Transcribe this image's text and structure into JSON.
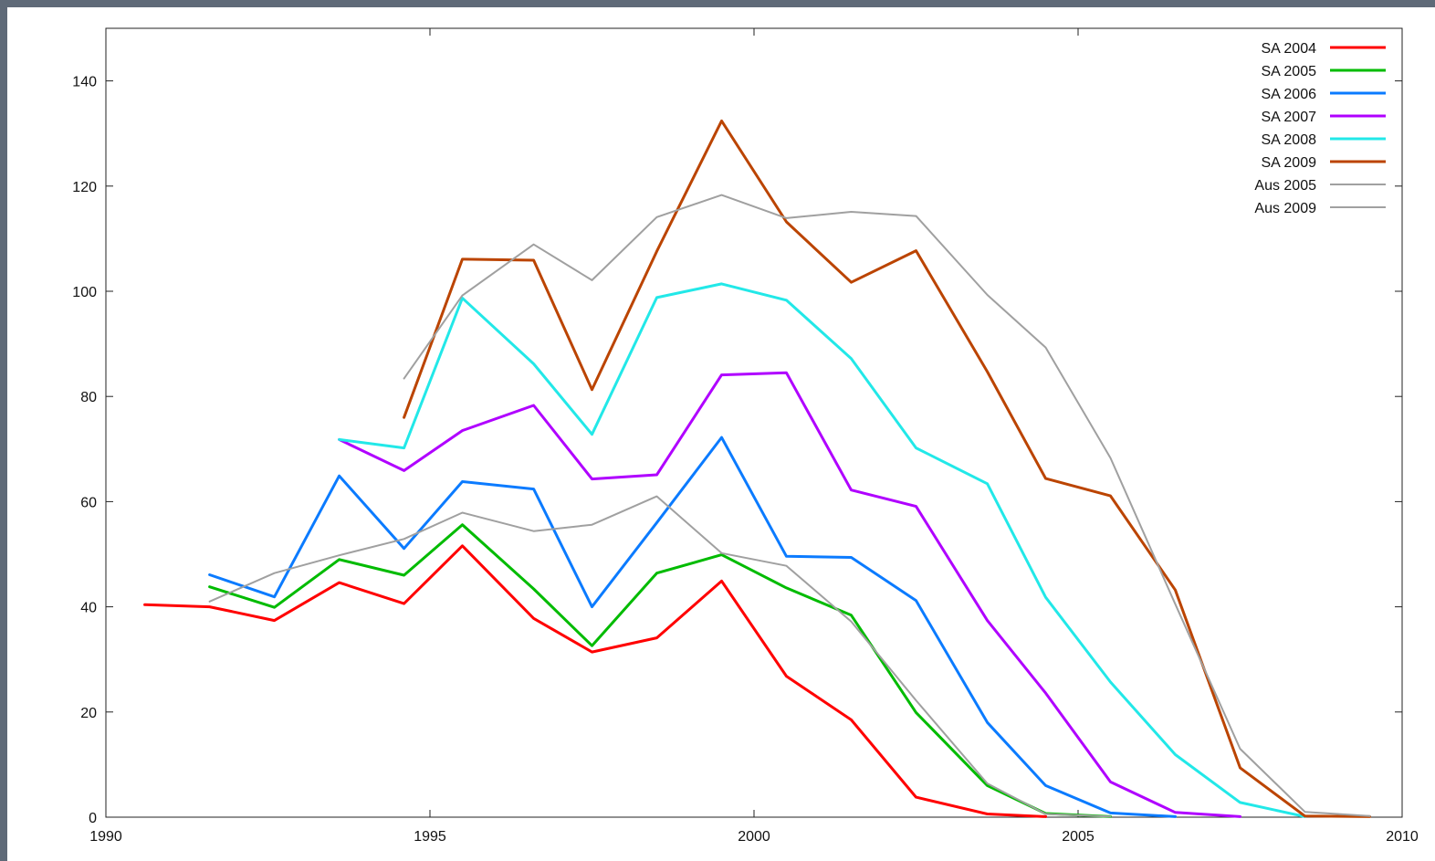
{
  "chart_data": {
    "type": "line",
    "title": "",
    "xlabel": "",
    "ylabel": "",
    "xlim": [
      1990,
      2010
    ],
    "ylim": [
      0,
      150
    ],
    "x_ticks": [
      1990,
      1995,
      2000,
      2005,
      2010
    ],
    "y_ticks": [
      0,
      20,
      40,
      60,
      80,
      100,
      120,
      140
    ],
    "grid": false,
    "legend_position": "top-right",
    "series": [
      {
        "name": "SA 2004",
        "color": "#ff0000",
        "width": 3,
        "points": [
          [
            1990.6,
            40.4
          ],
          [
            1991.6,
            40.0
          ],
          [
            1992.6,
            37.4
          ],
          [
            1993.6,
            44.6
          ],
          [
            1994.6,
            40.6
          ],
          [
            1995.5,
            51.6
          ],
          [
            1996.6,
            37.8
          ],
          [
            1997.5,
            31.4
          ],
          [
            1998.5,
            34.1
          ],
          [
            1999.5,
            44.9
          ],
          [
            2000.5,
            26.8
          ],
          [
            2001.5,
            18.5
          ],
          [
            2002.5,
            3.8
          ],
          [
            2003.6,
            0.6
          ],
          [
            2004.5,
            0.1
          ]
        ]
      },
      {
        "name": "SA 2005",
        "color": "#00bb00",
        "width": 3,
        "points": [
          [
            1991.6,
            43.8
          ],
          [
            1992.6,
            39.9
          ],
          [
            1993.6,
            49.0
          ],
          [
            1994.6,
            46.0
          ],
          [
            1995.5,
            55.6
          ],
          [
            1996.6,
            43.4
          ],
          [
            1997.5,
            32.6
          ],
          [
            1998.5,
            46.4
          ],
          [
            1999.5,
            49.9
          ],
          [
            2000.5,
            43.6
          ],
          [
            2001.5,
            38.4
          ],
          [
            2002.5,
            19.9
          ],
          [
            2003.6,
            6.0
          ],
          [
            2004.5,
            0.7
          ],
          [
            2005.5,
            0.1
          ]
        ]
      },
      {
        "name": "SA 2006",
        "color": "#0b7bff",
        "width": 3,
        "points": [
          [
            1991.6,
            46.1
          ],
          [
            1992.6,
            41.9
          ],
          [
            1993.6,
            64.9
          ],
          [
            1994.6,
            51.1
          ],
          [
            1995.5,
            63.8
          ],
          [
            1996.6,
            62.4
          ],
          [
            1997.5,
            40.0
          ],
          [
            1998.5,
            56.0
          ],
          [
            1999.5,
            72.2
          ],
          [
            2000.5,
            49.6
          ],
          [
            2001.5,
            49.4
          ],
          [
            2002.5,
            41.2
          ],
          [
            2003.6,
            18.0
          ],
          [
            2004.5,
            6.0
          ],
          [
            2005.5,
            0.8
          ],
          [
            2006.5,
            0.1
          ]
        ]
      },
      {
        "name": "SA 2007",
        "color": "#b000ff",
        "width": 3,
        "points": [
          [
            1993.6,
            71.8
          ],
          [
            1994.6,
            65.9
          ],
          [
            1995.5,
            73.5
          ],
          [
            1996.6,
            78.3
          ],
          [
            1997.5,
            64.3
          ],
          [
            1998.5,
            65.1
          ],
          [
            1999.5,
            84.1
          ],
          [
            2000.5,
            84.5
          ],
          [
            2001.5,
            62.2
          ],
          [
            2002.5,
            59.1
          ],
          [
            2003.6,
            37.4
          ],
          [
            2004.5,
            23.6
          ],
          [
            2005.5,
            6.7
          ],
          [
            2006.5,
            0.9
          ],
          [
            2007.5,
            0.1
          ]
        ]
      },
      {
        "name": "SA 2008",
        "color": "#22e8e8",
        "width": 3,
        "points": [
          [
            1993.6,
            71.8
          ],
          [
            1994.6,
            70.2
          ],
          [
            1995.5,
            98.7
          ],
          [
            1996.6,
            86.2
          ],
          [
            1997.5,
            72.8
          ],
          [
            1998.5,
            98.8
          ],
          [
            1999.5,
            101.4
          ],
          [
            2000.5,
            98.3
          ],
          [
            2001.5,
            87.2
          ],
          [
            2002.5,
            70.2
          ],
          [
            2003.6,
            63.4
          ],
          [
            2004.5,
            41.8
          ],
          [
            2005.5,
            25.7
          ],
          [
            2006.5,
            11.9
          ],
          [
            2007.5,
            2.8
          ],
          [
            2008.5,
            0.1
          ]
        ]
      },
      {
        "name": "SA 2009",
        "color": "#bb4400",
        "width": 3,
        "points": [
          [
            1994.6,
            76.0
          ],
          [
            1995.5,
            106.1
          ],
          [
            1996.6,
            105.9
          ],
          [
            1997.5,
            81.3
          ],
          [
            1998.5,
            107.6
          ],
          [
            1999.5,
            132.4
          ],
          [
            2000.5,
            113.2
          ],
          [
            2001.5,
            101.7
          ],
          [
            2002.5,
            107.7
          ],
          [
            2003.6,
            84.7
          ],
          [
            2004.5,
            64.4
          ],
          [
            2005.5,
            61.1
          ],
          [
            2006.5,
            43.2
          ],
          [
            2007.5,
            9.4
          ],
          [
            2008.5,
            0.2
          ],
          [
            2009.5,
            0.1
          ]
        ]
      },
      {
        "name": "Aus 2005",
        "color": "#a0a0a0",
        "width": 2,
        "points": [
          [
            1991.6,
            41.0
          ],
          [
            1992.6,
            46.4
          ],
          [
            1993.6,
            49.8
          ],
          [
            1994.6,
            52.9
          ],
          [
            1995.5,
            57.9
          ],
          [
            1996.6,
            54.4
          ],
          [
            1997.5,
            55.6
          ],
          [
            1998.5,
            61.0
          ],
          [
            1999.5,
            50.2
          ],
          [
            2000.5,
            47.8
          ],
          [
            2001.5,
            37.2
          ],
          [
            2002.5,
            22.2
          ],
          [
            2003.6,
            6.4
          ],
          [
            2004.5,
            0.6
          ],
          [
            2005.5,
            0.1
          ]
        ]
      },
      {
        "name": "Aus 2009",
        "color": "#a0a0a0",
        "width": 2,
        "points": [
          [
            1994.6,
            83.4
          ],
          [
            1995.5,
            99.2
          ],
          [
            1996.6,
            108.9
          ],
          [
            1997.5,
            102.1
          ],
          [
            1998.5,
            114.1
          ],
          [
            1999.5,
            118.3
          ],
          [
            2000.5,
            113.9
          ],
          [
            2001.5,
            115.1
          ],
          [
            2002.5,
            114.3
          ],
          [
            2003.6,
            99.3
          ],
          [
            2004.5,
            89.3
          ],
          [
            2005.5,
            68.3
          ],
          [
            2006.5,
            40.5
          ],
          [
            2007.5,
            13.0
          ],
          [
            2008.5,
            1.0
          ],
          [
            2009.5,
            0.2
          ]
        ]
      }
    ]
  }
}
